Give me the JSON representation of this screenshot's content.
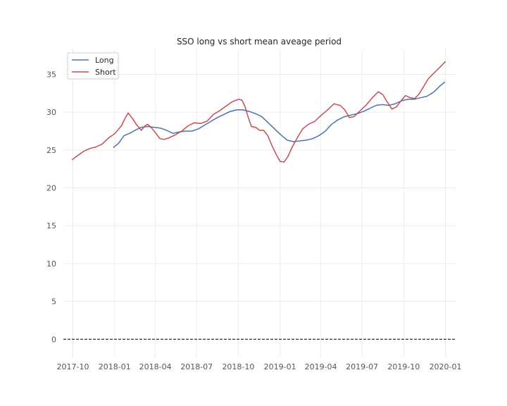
{
  "chart_data": {
    "type": "line",
    "title": "SSO long vs short mean aveage period",
    "xlabel": "",
    "ylabel": "",
    "x_ticks": [
      "2017-10",
      "2018-01",
      "2018-04",
      "2018-07",
      "2018-10",
      "2019-01",
      "2019-04",
      "2019-07",
      "2019-10",
      "2020-01"
    ],
    "y_ticks": [
      0,
      5,
      10,
      15,
      20,
      25,
      30,
      35
    ],
    "xlim": [
      "2017-09-10",
      "2020-01-25"
    ],
    "ylim": [
      -2.3,
      38.3
    ],
    "grid": true,
    "legend_position": "top-left",
    "reference_line": {
      "y": 0,
      "style": "dashed",
      "color": "#000000"
    },
    "series": [
      {
        "name": "Long",
        "color": "#4c72b0",
        "points": [
          [
            "2017-12-29",
            25.3
          ],
          [
            "2018-01-10",
            25.9
          ],
          [
            "2018-01-22",
            26.9
          ],
          [
            "2018-02-03",
            27.2
          ],
          [
            "2018-02-15",
            27.6
          ],
          [
            "2018-03-01",
            28.0
          ],
          [
            "2018-03-15",
            28.1
          ],
          [
            "2018-03-29",
            28.0
          ],
          [
            "2018-04-12",
            27.9
          ],
          [
            "2018-04-26",
            27.6
          ],
          [
            "2018-05-10",
            27.2
          ],
          [
            "2018-05-24",
            27.4
          ],
          [
            "2018-06-07",
            27.5
          ],
          [
            "2018-06-21",
            27.5
          ],
          [
            "2018-07-05",
            27.8
          ],
          [
            "2018-07-19",
            28.3
          ],
          [
            "2018-08-02",
            28.8
          ],
          [
            "2018-08-16",
            29.3
          ],
          [
            "2018-08-30",
            29.7
          ],
          [
            "2018-09-13",
            30.1
          ],
          [
            "2018-09-27",
            30.3
          ],
          [
            "2018-10-11",
            30.3
          ],
          [
            "2018-10-25",
            30.1
          ],
          [
            "2018-11-08",
            29.8
          ],
          [
            "2018-11-22",
            29.4
          ],
          [
            "2018-12-06",
            28.6
          ],
          [
            "2018-12-20",
            27.8
          ],
          [
            "2019-01-03",
            27.0
          ],
          [
            "2019-01-17",
            26.3
          ],
          [
            "2019-01-31",
            26.1
          ],
          [
            "2019-02-14",
            26.2
          ],
          [
            "2019-02-28",
            26.3
          ],
          [
            "2019-03-14",
            26.5
          ],
          [
            "2019-03-28",
            26.9
          ],
          [
            "2019-04-11",
            27.5
          ],
          [
            "2019-04-25",
            28.4
          ],
          [
            "2019-05-09",
            29.0
          ],
          [
            "2019-05-23",
            29.4
          ],
          [
            "2019-06-06",
            29.6
          ],
          [
            "2019-06-20",
            29.8
          ],
          [
            "2019-07-04",
            30.1
          ],
          [
            "2019-07-18",
            30.5
          ],
          [
            "2019-08-01",
            30.9
          ],
          [
            "2019-08-15",
            31.0
          ],
          [
            "2019-08-29",
            30.9
          ],
          [
            "2019-09-12",
            31.1
          ],
          [
            "2019-09-26",
            31.5
          ],
          [
            "2019-10-10",
            31.7
          ],
          [
            "2019-10-24",
            31.7
          ],
          [
            "2019-11-07",
            31.9
          ],
          [
            "2019-11-21",
            32.1
          ],
          [
            "2019-12-05",
            32.6
          ],
          [
            "2019-12-19",
            33.4
          ],
          [
            "2019-12-31",
            34.0
          ]
        ]
      },
      {
        "name": "Short",
        "color": "#c44e52",
        "points": [
          [
            "2017-09-29",
            23.7
          ],
          [
            "2017-10-10",
            24.2
          ],
          [
            "2017-10-24",
            24.8
          ],
          [
            "2017-11-07",
            25.2
          ],
          [
            "2017-11-21",
            25.4
          ],
          [
            "2017-12-05",
            25.8
          ],
          [
            "2017-12-19",
            26.6
          ],
          [
            "2018-01-02",
            27.2
          ],
          [
            "2018-01-16",
            28.2
          ],
          [
            "2018-01-25",
            29.3
          ],
          [
            "2018-01-31",
            29.9
          ],
          [
            "2018-02-09",
            29.2
          ],
          [
            "2018-02-19",
            28.3
          ],
          [
            "2018-03-01",
            27.6
          ],
          [
            "2018-03-09",
            28.2
          ],
          [
            "2018-03-15",
            28.4
          ],
          [
            "2018-03-24",
            27.9
          ],
          [
            "2018-04-02",
            27.2
          ],
          [
            "2018-04-11",
            26.5
          ],
          [
            "2018-04-20",
            26.4
          ],
          [
            "2018-05-01",
            26.6
          ],
          [
            "2018-05-15",
            27.0
          ],
          [
            "2018-05-29",
            27.5
          ],
          [
            "2018-06-12",
            28.2
          ],
          [
            "2018-06-26",
            28.6
          ],
          [
            "2018-07-10",
            28.5
          ],
          [
            "2018-07-24",
            28.8
          ],
          [
            "2018-08-07",
            29.7
          ],
          [
            "2018-08-21",
            30.2
          ],
          [
            "2018-09-04",
            30.8
          ],
          [
            "2018-09-18",
            31.4
          ],
          [
            "2018-10-02",
            31.7
          ],
          [
            "2018-10-09",
            31.6
          ],
          [
            "2018-10-16",
            30.7
          ],
          [
            "2018-10-23",
            29.3
          ],
          [
            "2018-10-30",
            28.1
          ],
          [
            "2018-11-08",
            28.0
          ],
          [
            "2018-11-17",
            27.6
          ],
          [
            "2018-11-26",
            27.6
          ],
          [
            "2018-12-05",
            26.9
          ],
          [
            "2018-12-14",
            25.6
          ],
          [
            "2018-12-23",
            24.5
          ],
          [
            "2019-01-01",
            23.5
          ],
          [
            "2019-01-10",
            23.4
          ],
          [
            "2019-01-19",
            24.2
          ],
          [
            "2019-01-28",
            25.4
          ],
          [
            "2019-02-08",
            26.6
          ],
          [
            "2019-02-20",
            27.8
          ],
          [
            "2019-03-05",
            28.4
          ],
          [
            "2019-03-19",
            28.8
          ],
          [
            "2019-04-02",
            29.6
          ],
          [
            "2019-04-16",
            30.3
          ],
          [
            "2019-04-30",
            31.1
          ],
          [
            "2019-05-14",
            30.9
          ],
          [
            "2019-05-24",
            30.3
          ],
          [
            "2019-06-03",
            29.3
          ],
          [
            "2019-06-13",
            29.4
          ],
          [
            "2019-06-27",
            30.2
          ],
          [
            "2019-07-11",
            31.0
          ],
          [
            "2019-07-25",
            32.0
          ],
          [
            "2019-08-06",
            32.7
          ],
          [
            "2019-08-16",
            32.3
          ],
          [
            "2019-08-26",
            31.3
          ],
          [
            "2019-09-05",
            30.4
          ],
          [
            "2019-09-15",
            30.7
          ],
          [
            "2019-09-25",
            31.5
          ],
          [
            "2019-10-05",
            32.2
          ],
          [
            "2019-10-15",
            31.9
          ],
          [
            "2019-10-25",
            31.8
          ],
          [
            "2019-11-04",
            32.4
          ],
          [
            "2019-11-14",
            33.4
          ],
          [
            "2019-11-24",
            34.4
          ],
          [
            "2019-12-04",
            35.0
          ],
          [
            "2019-12-14",
            35.6
          ],
          [
            "2019-12-24",
            36.2
          ],
          [
            "2020-01-01",
            36.7
          ]
        ]
      }
    ]
  }
}
